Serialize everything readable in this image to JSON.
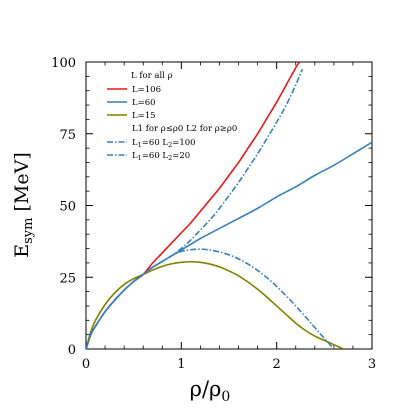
{
  "chart_data": {
    "type": "line",
    "xlabel": "ρ/ρ0",
    "xlabel_main": "ρ/ρ",
    "xlabel_sub": "0",
    "ylabel": "Esym [MeV]",
    "ylabel_main": "E",
    "ylabel_sub": "sym",
    "ylabel_unit": " [MeV]",
    "xlim": [
      0,
      3
    ],
    "ylim": [
      0,
      100
    ],
    "xticks": [
      0,
      1,
      2,
      3
    ],
    "xtick_labels": [
      "0",
      "1",
      "2",
      "3"
    ],
    "yticks": [
      0,
      25,
      50,
      75,
      100
    ],
    "ytick_labels": [
      "0",
      "25",
      "50",
      "75",
      "100"
    ],
    "grid": false,
    "legend_position": "top-left",
    "legend_headers": [
      {
        "id": "hdr1",
        "text": "L for all ρ"
      },
      {
        "id": "hdr2",
        "text": "L1 for ρ≤ρ0  L2 for ρ≥ρ0"
      }
    ],
    "series": [
      {
        "name": "L=106",
        "color": "#e8191c",
        "dash": "solid",
        "x": [
          0,
          0.05,
          0.1,
          0.2,
          0.3,
          0.4,
          0.5,
          0.6,
          0.7,
          0.8,
          0.9,
          1.0,
          1.1,
          1.2,
          1.3,
          1.4,
          1.5,
          1.6,
          1.7,
          1.8,
          1.9,
          2.0,
          2.1,
          2.2,
          2.25
        ],
        "y": [
          0,
          5,
          8,
          13,
          17,
          20.5,
          23.5,
          26,
          30,
          33.5,
          37,
          40.5,
          44,
          48,
          52,
          56,
          60.5,
          65,
          70,
          75,
          80.5,
          86,
          92,
          98,
          100.5
        ]
      },
      {
        "name": "L=60",
        "color": "#3a7fb8",
        "dash": "solid",
        "x": [
          0,
          0.05,
          0.1,
          0.2,
          0.3,
          0.4,
          0.5,
          0.6,
          0.7,
          0.8,
          0.9,
          1.0,
          1.2,
          1.4,
          1.6,
          1.8,
          2.0,
          2.2,
          2.4,
          2.6,
          2.8,
          3.0
        ],
        "y": [
          0,
          5,
          8,
          13,
          17,
          20.5,
          23.5,
          26,
          28.5,
          30.5,
          32.5,
          34.5,
          38.5,
          42,
          45.5,
          49,
          53,
          56.5,
          60.5,
          64,
          68,
          72
        ]
      },
      {
        "name": "L=15",
        "color": "#808000",
        "dash": "solid",
        "x": [
          0,
          0.05,
          0.1,
          0.2,
          0.3,
          0.4,
          0.5,
          0.6,
          0.7,
          0.8,
          0.9,
          1.0,
          1.1,
          1.2,
          1.3,
          1.4,
          1.5,
          1.6,
          1.7,
          1.8,
          1.9,
          2.0,
          2.1,
          2.2,
          2.3,
          2.4,
          2.5,
          2.6,
          2.7
        ],
        "y": [
          0,
          6,
          10,
          15.5,
          19.5,
          22.5,
          24.5,
          26,
          27.5,
          28.8,
          29.7,
          30.2,
          30.4,
          30.2,
          29.6,
          28.6,
          27.2,
          25.5,
          23.3,
          20.8,
          18,
          15,
          12,
          9,
          6.5,
          4.5,
          3,
          1.5,
          0
        ]
      },
      {
        "name": "L1=60     L2=100",
        "label_parts": [
          "L",
          "1",
          "=60     L",
          "2",
          "=100"
        ],
        "color": "#3a7fb8",
        "dash": "dashdot",
        "x": [
          0,
          0.05,
          0.1,
          0.2,
          0.3,
          0.4,
          0.5,
          0.6,
          0.7,
          0.8,
          0.9,
          1.0,
          1.1,
          1.2,
          1.3,
          1.4,
          1.5,
          1.6,
          1.7,
          1.8,
          1.9,
          2.0,
          2.1,
          2.2,
          2.27
        ],
        "y": [
          0,
          5,
          8,
          13,
          17,
          20.5,
          23.5,
          26,
          28.5,
          30.5,
          32.5,
          35,
          38,
          41.5,
          45,
          49,
          53.5,
          58,
          63,
          68,
          73.5,
          79,
          85,
          92,
          97.5
        ]
      },
      {
        "name": "L1=60     L2=20",
        "label_parts": [
          "L",
          "1",
          "=60     L",
          "2",
          "=20"
        ],
        "color": "#3a7fb8",
        "dash": "dashdot",
        "x": [
          0,
          0.05,
          0.1,
          0.2,
          0.3,
          0.4,
          0.5,
          0.6,
          0.7,
          0.8,
          0.9,
          1.0,
          1.1,
          1.2,
          1.3,
          1.4,
          1.5,
          1.6,
          1.7,
          1.8,
          1.9,
          2.0,
          2.1,
          2.2,
          2.3,
          2.4,
          2.5,
          2.6
        ],
        "y": [
          0,
          5,
          8,
          13,
          17,
          20.5,
          23.5,
          26,
          28.5,
          30.5,
          32.5,
          34,
          34.6,
          34.8,
          34.5,
          33.8,
          32.8,
          31.4,
          29.6,
          27.4,
          24.8,
          21.8,
          18.5,
          15,
          11.3,
          7.5,
          3.7,
          0
        ]
      }
    ]
  }
}
